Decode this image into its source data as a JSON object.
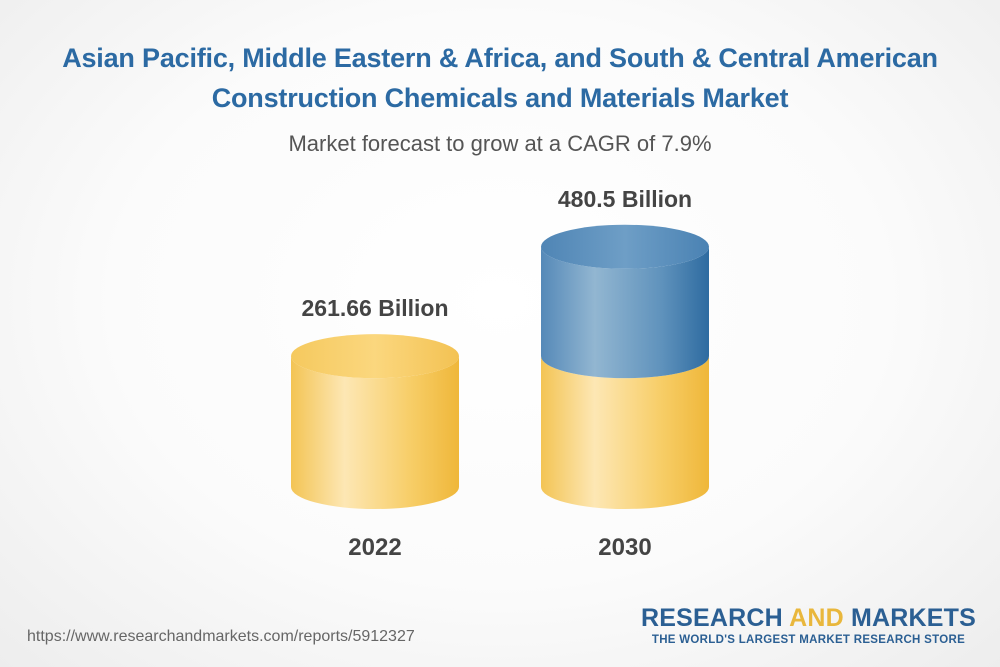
{
  "chart_data": {
    "type": "bar",
    "title": "Asian Pacific, Middle Eastern & Africa, and South & Central American Construction Chemicals and Materials Market",
    "subtitle": "Market forecast to grow at a CAGR of 7.9%",
    "categories": [
      "2022",
      "2030"
    ],
    "values": [
      261.66,
      480.5
    ],
    "value_labels": [
      "261.66 Billion",
      "480.5 Billion"
    ],
    "unit": "Billion",
    "cagr": "7.9%",
    "colors": {
      "base": "#f5c551",
      "growth": "#3d7aab"
    }
  },
  "footer": {
    "url": "https://www.researchandmarkets.com/reports/5912327",
    "brand_part1": "RESEARCH ",
    "brand_part2": "AND",
    "brand_part3": " MARKETS",
    "tagline": "THE WORLD'S LARGEST MARKET RESEARCH STORE"
  }
}
